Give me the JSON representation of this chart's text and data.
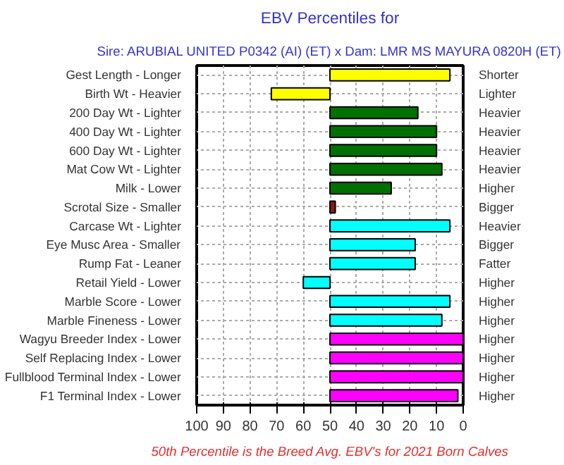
{
  "chart_data": {
    "type": "bar",
    "orientation": "horizontal",
    "title": "EBV Percentiles for",
    "subtitle": "Sire: ARUBIAL UNITED P0342 (AI) (ET) x Dam: LMR MS MAYURA 0820H (ET)",
    "categories": [
      "Gest Length - Longer",
      "Birth Wt - Heavier",
      "200 Day Wt - Lighter",
      "400 Day Wt - Lighter",
      "600 Day Wt - Lighter",
      "Mat Cow Wt - Lighter",
      "Milk - Lower",
      "Scrotal Size - Smaller",
      "Carcase Wt - Lighter",
      "Eye Musc Area - Smaller",
      "Rump Fat - Leaner",
      "Retail Yield - Lower",
      "Marble Score - Lower",
      "Marble Fineness - Lower",
      "Wagyu Breeder Index - Lower",
      "Self Replacing Index - Lower",
      "Fullblood Terminal Index - Lower",
      "F1 Terminal Index - Lower"
    ],
    "y2_categories": [
      "Shorter",
      "Lighter",
      "Heavier",
      "Heavier",
      "Heavier",
      "Heavier",
      "Higher",
      "Bigger",
      "Heavier",
      "Bigger",
      "Fatter",
      "Higher",
      "Higher",
      "Higher",
      "Higher",
      "Higher",
      "Higher",
      "Higher"
    ],
    "base": [
      50,
      50,
      50,
      50,
      50,
      50,
      50,
      50,
      50,
      50,
      50,
      50,
      50,
      50,
      50,
      50,
      50,
      50
    ],
    "values": [
      -45,
      22,
      -33,
      -40,
      -40,
      -42,
      -23,
      -2,
      -45,
      -32,
      -32,
      10,
      -45,
      -42,
      -50,
      -50,
      -50,
      -48
    ],
    "colors": [
      "#ffff00",
      "#ffff00",
      "#007000",
      "#007000",
      "#007000",
      "#007000",
      "#007000",
      "#8b1a1a",
      "#00ffff",
      "#00ffff",
      "#00ffff",
      "#00ffff",
      "#00ffff",
      "#00ffff",
      "#ff00ff",
      "#ff00ff",
      "#ff00ff",
      "#ff00ff"
    ],
    "xlim": [
      100,
      0
    ],
    "xticks": [
      100,
      90,
      80,
      70,
      60,
      50,
      40,
      30,
      20,
      10,
      0
    ],
    "grid": true,
    "annotations": [
      "50th Percentile is the Breed Avg. EBV's for 2021 Born Calves"
    ]
  }
}
